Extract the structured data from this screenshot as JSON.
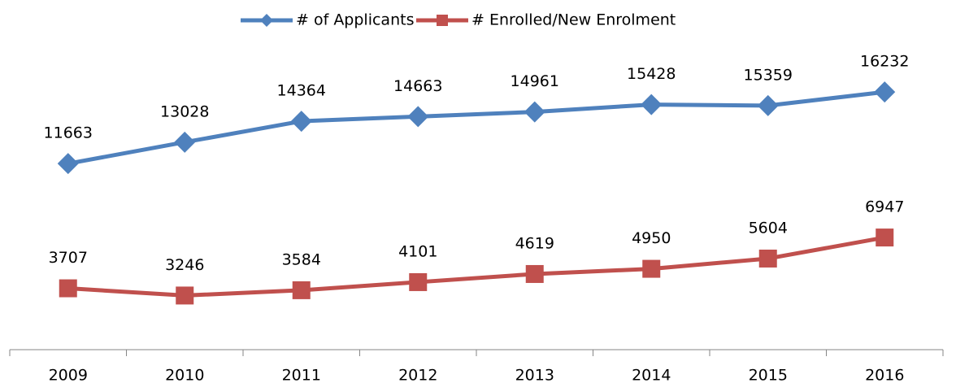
{
  "chart_data": {
    "type": "line",
    "categories": [
      "2009",
      "2010",
      "2011",
      "2012",
      "2013",
      "2014",
      "2015",
      "2016"
    ],
    "series": [
      {
        "name": "# of Applicants",
        "color": "#4f81bd",
        "marker": "diamond",
        "values": [
          11663,
          13028,
          14364,
          14663,
          14961,
          15428,
          15359,
          16232
        ]
      },
      {
        "name": "# Enrolled/New Enrolment",
        "color": "#c0504d",
        "marker": "square",
        "values": [
          3707,
          3246,
          3584,
          4101,
          4619,
          4950,
          5604,
          6947
        ]
      }
    ],
    "ylim": [
      0,
      18000
    ],
    "legend": "top"
  }
}
